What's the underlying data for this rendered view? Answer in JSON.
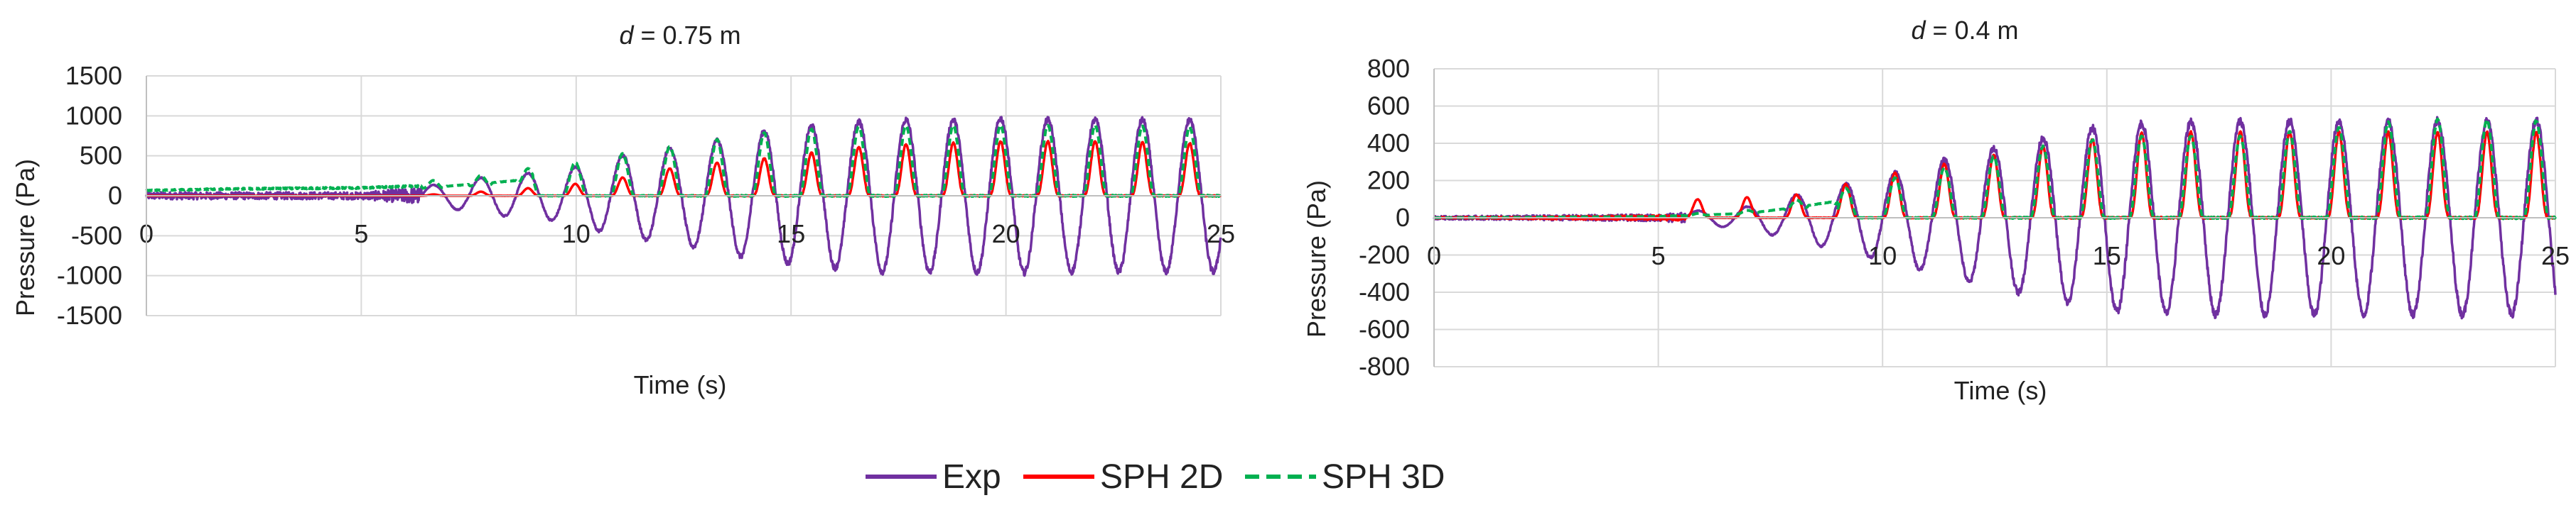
{
  "chart_data": [
    {
      "type": "line",
      "title": "d = 0.75 m",
      "title_var": "d",
      "title_rest": " = 0.75 m",
      "xlabel": "Time (s)",
      "ylabel": "Pressure (Pa)",
      "xlim": [
        0,
        25
      ],
      "ylim": [
        -1500,
        1500
      ],
      "xticks": [
        "0",
        "5",
        "10",
        "15",
        "20",
        "25"
      ],
      "yticks": [
        "1500",
        "1000",
        "500",
        "0",
        "-500",
        "-1000",
        "-1500"
      ],
      "grid": true,
      "series": [
        {
          "name": "Exp",
          "t": [
            0,
            2,
            5,
            7,
            7.7,
            8.7,
            9.7,
            10.8,
            11.9,
            12.9,
            14,
            15,
            16,
            17,
            18,
            19,
            20,
            21,
            22,
            23,
            24,
            25
          ],
          "amp": [
            50,
            50,
            50,
            150,
            220,
            270,
            320,
            480,
            580,
            650,
            780,
            850,
            900,
            950,
            950,
            950,
            970,
            950,
            950,
            950,
            950,
            950
          ],
          "period": 1.1,
          "start": 6.4
        },
        {
          "name": "SPH 2D",
          "t": [
            0,
            5,
            7,
            8,
            9,
            10,
            11,
            12,
            13,
            14,
            15,
            16,
            17,
            18,
            20,
            22,
            25
          ],
          "amp": [
            0,
            0,
            20,
            60,
            100,
            150,
            220,
            330,
            400,
            450,
            500,
            580,
            630,
            650,
            680,
            680,
            650
          ],
          "period": 1.1,
          "start": 6.4
        },
        {
          "name": "SPH 3D",
          "t": [
            0,
            2,
            5,
            7,
            8,
            9,
            10,
            11,
            12,
            13,
            14,
            15,
            16,
            17,
            18,
            20,
            22,
            25
          ],
          "amp": [
            100,
            130,
            150,
            200,
            270,
            350,
            420,
            520,
            600,
            680,
            760,
            820,
            850,
            870,
            880,
            880,
            880,
            850
          ],
          "period": 1.1,
          "start": 6.4
        }
      ]
    },
    {
      "type": "line",
      "title": "d = 0.4 m",
      "title_var": "d",
      "title_rest": " = 0.4 m",
      "xlabel": "Time (s)",
      "ylabel": "Pressure (Pa)",
      "xlim": [
        0,
        25
      ],
      "ylim": [
        -800,
        800
      ],
      "xticks": [
        "0",
        "5",
        "10",
        "15",
        "20",
        "25"
      ],
      "yticks": [
        "800",
        "600",
        "400",
        "200",
        "0",
        "-200",
        "-400",
        "-600",
        "-800"
      ],
      "grid": true,
      "series": [
        {
          "name": "Exp",
          "t": [
            0,
            5,
            7,
            8,
            9,
            10,
            11,
            12,
            13,
            14,
            15,
            16,
            17,
            18,
            20,
            22,
            25
          ],
          "amp": [
            10,
            20,
            60,
            120,
            170,
            230,
            290,
            350,
            400,
            450,
            500,
            510,
            520,
            520,
            520,
            520,
            520
          ],
          "period": 1.1,
          "start": 5.6
        },
        {
          "name": "SPH 2D",
          "t": [
            0,
            3,
            5,
            7,
            8,
            9,
            10,
            11,
            12,
            13,
            14,
            15,
            16,
            17,
            18,
            20,
            22,
            25
          ],
          "amp": [
            20,
            60,
            90,
            110,
            120,
            170,
            230,
            270,
            320,
            360,
            400,
            430,
            460,
            460,
            460,
            460,
            460,
            460
          ],
          "period": 1.1,
          "start": 5.6
        },
        {
          "name": "SPH 3D",
          "t": [
            0,
            5,
            7,
            8,
            9,
            10,
            11,
            12,
            13,
            14,
            15,
            16,
            17,
            18,
            20,
            22,
            25
          ],
          "amp": [
            0,
            10,
            40,
            90,
            150,
            200,
            250,
            300,
            360,
            400,
            430,
            440,
            440,
            440,
            480,
            530,
            520
          ],
          "period": 1.1,
          "start": 5.6
        }
      ]
    }
  ],
  "legend": {
    "placement": "bottom-center",
    "items": [
      {
        "name": "Exp",
        "color": "#7030a0",
        "style": "solid"
      },
      {
        "name": "SPH 2D",
        "color": "#ff0000",
        "style": "solid"
      },
      {
        "name": "SPH 3D",
        "color": "#00b050",
        "style": "dashed"
      }
    ]
  },
  "colors": {
    "grid": "#d9d9d9",
    "axis": "#bfbfbf",
    "text": "#222222"
  }
}
